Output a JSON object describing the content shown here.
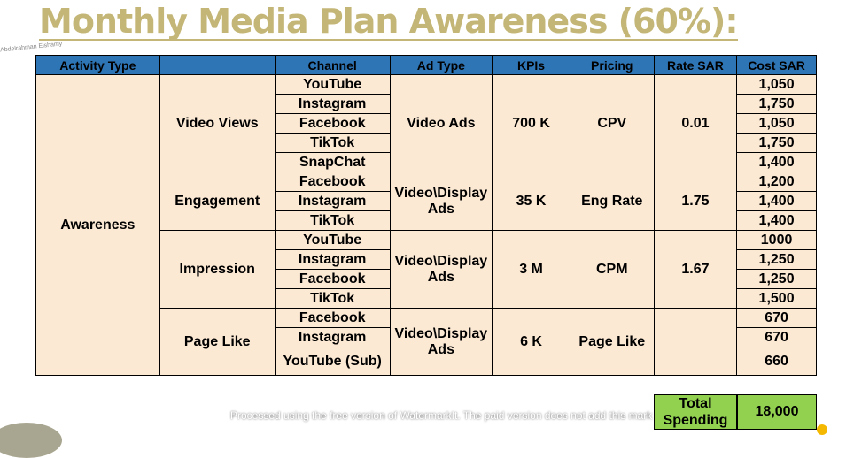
{
  "title": "Monthly Media Plan Awareness (60%):",
  "headers": [
    "Activity Type",
    "",
    "Channel",
    "Ad Type",
    "KPIs",
    "Pricing",
    "Rate SAR",
    "Cost SAR"
  ],
  "activity_type": "Awareness",
  "groups": [
    {
      "name": "Video Views",
      "channels": [
        "YouTube",
        "Instagram",
        "Facebook",
        "TikTok",
        "SnapChat"
      ],
      "ad_type": "Video Ads",
      "kpi": "700 K",
      "pricing": "CPV",
      "rate": "0.01",
      "costs": [
        "1,050",
        "1,750",
        "1,050",
        "1,750",
        "1,400"
      ]
    },
    {
      "name": "Engagement",
      "channels": [
        "Facebook",
        "Instagram",
        "TikTok"
      ],
      "ad_type": "Video\\Display Ads",
      "kpi": "35 K",
      "pricing": "Eng Rate",
      "rate": "1.75",
      "costs": [
        "1,200",
        "1,400",
        "1,400"
      ]
    },
    {
      "name": "Impression",
      "channels": [
        "YouTube",
        "Instagram",
        "Facebook",
        "TikTok"
      ],
      "ad_type": "Video\\Display Ads",
      "kpi": "3 M",
      "pricing": "CPM",
      "rate": "1.67",
      "costs": [
        "1000",
        "1,250",
        "1,250",
        "1,500"
      ]
    },
    {
      "name": "Page Like",
      "channels": [
        "Facebook",
        "Instagram",
        "YouTube (Sub)"
      ],
      "ad_type": "Video\\Display Ads",
      "kpi": "6 K",
      "pricing": "Page Like",
      "rate": "",
      "costs": [
        "670",
        "670",
        "660"
      ]
    }
  ],
  "total": {
    "label": "Total Spending",
    "value": "18,000"
  },
  "watermark": "Processed using the free version of WatermarkIt. The paid version does not add this mark",
  "author_mark": "Abdelrahman Elshamy",
  "colors": {
    "header": "#2e75b6",
    "cell": "#fce9d4",
    "total": "#92d050",
    "title": "#c4b677"
  }
}
